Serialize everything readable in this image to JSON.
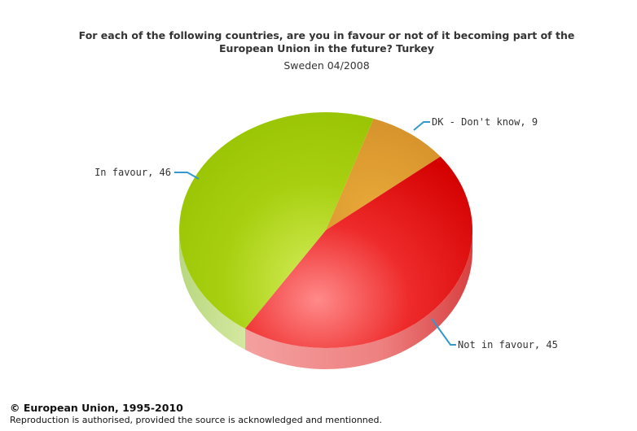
{
  "chart_data": {
    "type": "pie",
    "title_lines": [
      "For each of the following countries, are you in favour or not of it becoming part of the",
      "European Union in the future? Turkey"
    ],
    "subtitle": "Sweden 04/2008",
    "slices": [
      {
        "name": "DK - Don't know",
        "value": 9,
        "label": "DK - Don't know, 9",
        "color": "#E0A030"
      },
      {
        "name": "Not in favour",
        "value": 45,
        "label": "Not in favour, 45",
        "color": "#E02020"
      },
      {
        "name": "In favour",
        "value": 46,
        "label": "In favour, 46",
        "color": "#9CC800"
      }
    ],
    "label_line_color": "#3399CC",
    "three_d": true,
    "legend": "none"
  },
  "footer": {
    "copyright": "© European Union, 1995-2010",
    "note": "Reproduction is authorised, provided the source is acknowledged and mentionned."
  }
}
